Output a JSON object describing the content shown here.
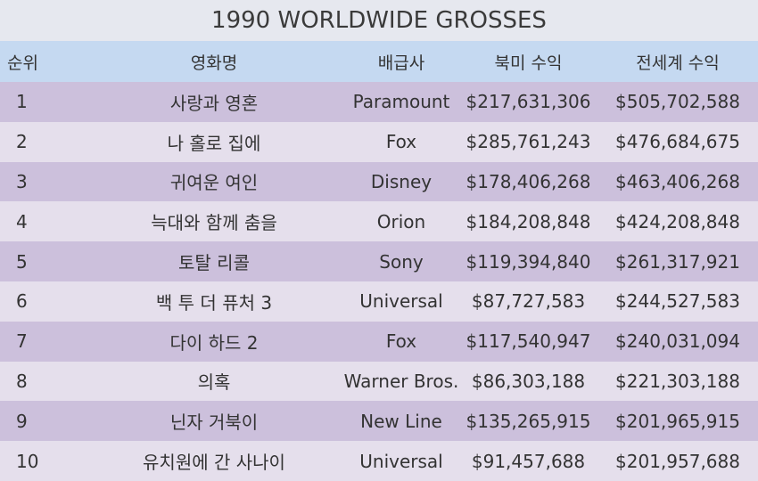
{
  "title": "1990 WORLDWIDE GROSSES",
  "headers": {
    "rank": "순위",
    "movie": "영화명",
    "distributor": "배급사",
    "domestic": "북미 수익",
    "worldwide": "전세계 수익"
  },
  "rows": [
    {
      "rank": "1",
      "movie": "사랑과 영혼",
      "distributor": "Paramount",
      "domestic": "$217,631,306",
      "worldwide": "$505,702,588"
    },
    {
      "rank": "2",
      "movie": "나 홀로 집에",
      "distributor": "Fox",
      "domestic": "$285,761,243",
      "worldwide": "$476,684,675"
    },
    {
      "rank": "3",
      "movie": "귀여운 여인",
      "distributor": "Disney",
      "domestic": "$178,406,268",
      "worldwide": "$463,406,268"
    },
    {
      "rank": "4",
      "movie": "늑대와 함께 춤을",
      "distributor": "Orion",
      "domestic": "$184,208,848",
      "worldwide": "$424,208,848"
    },
    {
      "rank": "5",
      "movie": "토탈 리콜",
      "distributor": "Sony",
      "domestic": "$119,394,840",
      "worldwide": "$261,317,921"
    },
    {
      "rank": "6",
      "movie": "백 투 더 퓨처 3",
      "distributor": "Universal",
      "domestic": "$87,727,583",
      "worldwide": "$244,527,583"
    },
    {
      "rank": "7",
      "movie": "다이 하드 2",
      "distributor": "Fox",
      "domestic": "$117,540,947",
      "worldwide": "$240,031,094"
    },
    {
      "rank": "8",
      "movie": "의혹",
      "distributor": "Warner Bros.",
      "domestic": "$86,303,188",
      "worldwide": "$221,303,188"
    },
    {
      "rank": "9",
      "movie": "닌자 거북이",
      "distributor": "New Line",
      "domestic": "$135,265,915",
      "worldwide": "$201,965,915"
    },
    {
      "rank": "10",
      "movie": "유치원에 간 사나이",
      "distributor": "Universal",
      "domestic": "$91,457,688",
      "worldwide": "$201,957,688"
    }
  ]
}
